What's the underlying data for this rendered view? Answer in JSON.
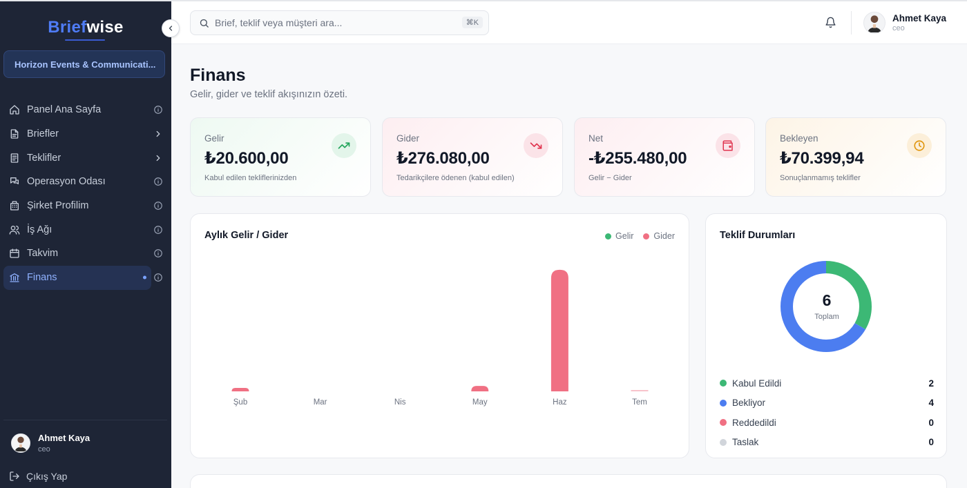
{
  "sidebar": {
    "logo_part1": "Brief",
    "logo_part2": "wise",
    "company": "Horizon Events & Communicati...",
    "items": [
      {
        "label": "Panel Ana Sayfa",
        "icon": "home-icon",
        "right": "info"
      },
      {
        "label": "Briefler",
        "icon": "document-icon",
        "right": "chevron"
      },
      {
        "label": "Teklifler",
        "icon": "file-list-icon",
        "right": "chevron"
      },
      {
        "label": "Operasyon Odası",
        "icon": "chat-icon",
        "right": "info"
      },
      {
        "label": "Şirket Profilim",
        "icon": "building-icon",
        "right": "info"
      },
      {
        "label": "İş Ağı",
        "icon": "users-icon",
        "right": "info"
      },
      {
        "label": "Takvim",
        "icon": "calendar-icon",
        "right": "info"
      },
      {
        "label": "Finans",
        "icon": "bank-icon",
        "right": "info",
        "active": true
      }
    ],
    "user": {
      "name": "Ahmet Kaya",
      "role": "ceo"
    },
    "logout": "Çıkış Yap"
  },
  "topbar": {
    "search_placeholder": "Brief, teklif veya müşteri ara...",
    "shortcut": "⌘K",
    "user": {
      "name": "Ahmet Kaya",
      "role": "ceo"
    }
  },
  "page": {
    "title": "Finans",
    "subtitle": "Gelir, gider ve teklif akışınızın özeti."
  },
  "cards": [
    {
      "label": "Gelir",
      "value": "₺20.600,00",
      "note": "Kabul edilen tekliflerinizden",
      "icon": "trending-up-icon",
      "color": "#22a55b"
    },
    {
      "label": "Gider",
      "value": "₺276.080,00",
      "note": "Tedarikçilere ödenen (kabul edilen)",
      "icon": "trending-down-icon",
      "color": "#e0344f"
    },
    {
      "label": "Net",
      "value": "-₺255.480,00",
      "note": "Gelir − Gider",
      "icon": "wallet-icon",
      "color": "#e0344f"
    },
    {
      "label": "Bekleyen",
      "value": "₺70.399,94",
      "note": "Sonuçlanmamış teklifler",
      "icon": "clock-icon",
      "color": "#e0960e"
    }
  ],
  "monthly": {
    "title": "Aylık Gelir / Gider",
    "legend_income": "Gelir",
    "legend_expense": "Gider",
    "income_color": "#3cb875",
    "expense_color": "#f07083"
  },
  "offers": {
    "title": "Teklif Durumları",
    "total": "6",
    "total_label": "Toplam",
    "rows": [
      {
        "label": "Kabul Edildi",
        "count": "2",
        "color": "#3cb875"
      },
      {
        "label": "Bekliyor",
        "count": "4",
        "color": "#4c7df0"
      },
      {
        "label": "Reddedildi",
        "count": "0",
        "color": "#f07083"
      },
      {
        "label": "Taslak",
        "count": "0",
        "color": "#d1d5db"
      }
    ]
  },
  "chart_data": [
    {
      "type": "bar",
      "title": "Aylık Gelir / Gider",
      "categories": [
        "Şub",
        "Mar",
        "Nis",
        "May",
        "Haz",
        "Tem"
      ],
      "series": [
        {
          "name": "Gelir",
          "values": [
            0,
            0,
            0,
            0,
            0,
            0
          ]
        },
        {
          "name": "Gider",
          "values": [
            7000,
            0,
            0,
            11000,
            246000,
            1200
          ]
        }
      ],
      "xlabel": "",
      "ylabel": "",
      "ylim": [
        0,
        250000
      ],
      "grid": false,
      "legend": "top-right"
    },
    {
      "type": "pie",
      "title": "Teklif Durumları",
      "labels": [
        "Kabul Edildi",
        "Bekliyor",
        "Reddedildi",
        "Taslak"
      ],
      "values": [
        2,
        4,
        0,
        0
      ]
    }
  ]
}
